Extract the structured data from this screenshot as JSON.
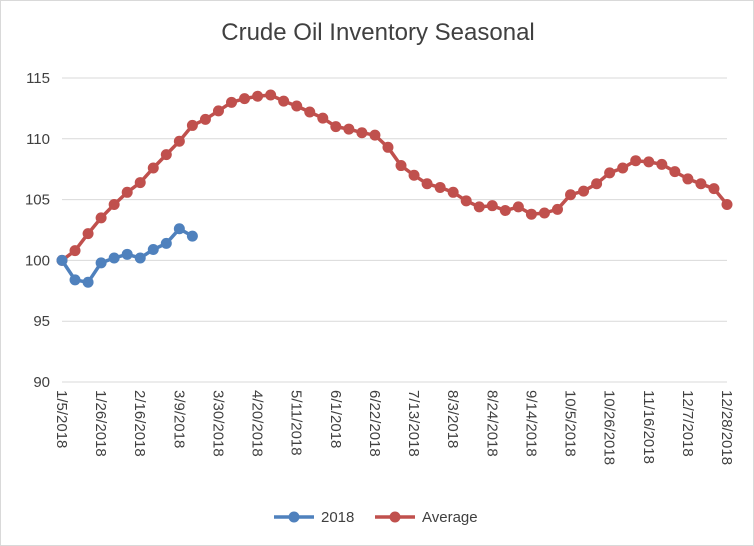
{
  "chart_data": {
    "type": "line",
    "title": "Crude Oil Inventory Seasonal",
    "xlabel": "",
    "ylabel": "",
    "ylim": [
      90,
      115
    ],
    "yticks": [
      90,
      95,
      100,
      105,
      110,
      115
    ],
    "x_tick_labels": [
      "1/5/2018",
      "1/26/2018",
      "2/16/2018",
      "3/9/2018",
      "3/30/2018",
      "4/20/2018",
      "5/11/2018",
      "6/1/2018",
      "6/22/2018",
      "7/13/2018",
      "8/3/2018",
      "8/24/2018",
      "9/14/2018",
      "10/5/2018",
      "10/26/2018",
      "11/16/2018",
      "12/7/2018",
      "12/28/2018"
    ],
    "x_dates": [
      "1/5/2018",
      "1/12/2018",
      "1/19/2018",
      "1/26/2018",
      "2/2/2018",
      "2/9/2018",
      "2/16/2018",
      "2/23/2018",
      "3/2/2018",
      "3/9/2018",
      "3/16/2018",
      "3/23/2018",
      "3/30/2018",
      "4/6/2018",
      "4/13/2018",
      "4/20/2018",
      "4/27/2018",
      "5/4/2018",
      "5/11/2018",
      "5/18/2018",
      "5/25/2018",
      "6/1/2018",
      "6/8/2018",
      "6/15/2018",
      "6/22/2018",
      "6/29/2018",
      "7/6/2018",
      "7/13/2018",
      "7/20/2018",
      "7/27/2018",
      "8/3/2018",
      "8/10/2018",
      "8/17/2018",
      "8/24/2018",
      "8/31/2018",
      "9/7/2018",
      "9/14/2018",
      "9/21/2018",
      "9/28/2018",
      "10/5/2018",
      "10/12/2018",
      "10/19/2018",
      "10/26/2018",
      "11/2/2018",
      "11/9/2018",
      "11/16/2018",
      "11/23/2018",
      "11/30/2018",
      "12/7/2018",
      "12/14/2018",
      "12/21/2018",
      "12/28/2018"
    ],
    "grid": true,
    "legend_position": "bottom",
    "series": [
      {
        "name": "2018",
        "color": "#4f81bd",
        "values": [
          100.0,
          98.4,
          98.2,
          99.8,
          100.2,
          100.5,
          100.2,
          100.9,
          101.4,
          102.6,
          102.0
        ]
      },
      {
        "name": "Average",
        "color": "#c0504d",
        "values": [
          100.0,
          100.8,
          102.2,
          103.5,
          104.6,
          105.6,
          106.4,
          107.6,
          108.7,
          109.8,
          111.1,
          111.6,
          112.3,
          113.0,
          113.3,
          113.5,
          113.6,
          113.1,
          112.7,
          112.2,
          111.7,
          111.0,
          110.8,
          110.5,
          110.3,
          109.3,
          107.8,
          107.0,
          106.3,
          106.0,
          105.6,
          104.9,
          104.4,
          104.5,
          104.1,
          104.4,
          103.8,
          103.9,
          104.2,
          105.4,
          105.7,
          106.3,
          107.2,
          107.6,
          108.2,
          108.1,
          107.9,
          107.3,
          106.7,
          106.3,
          105.9,
          104.6
        ]
      }
    ]
  }
}
